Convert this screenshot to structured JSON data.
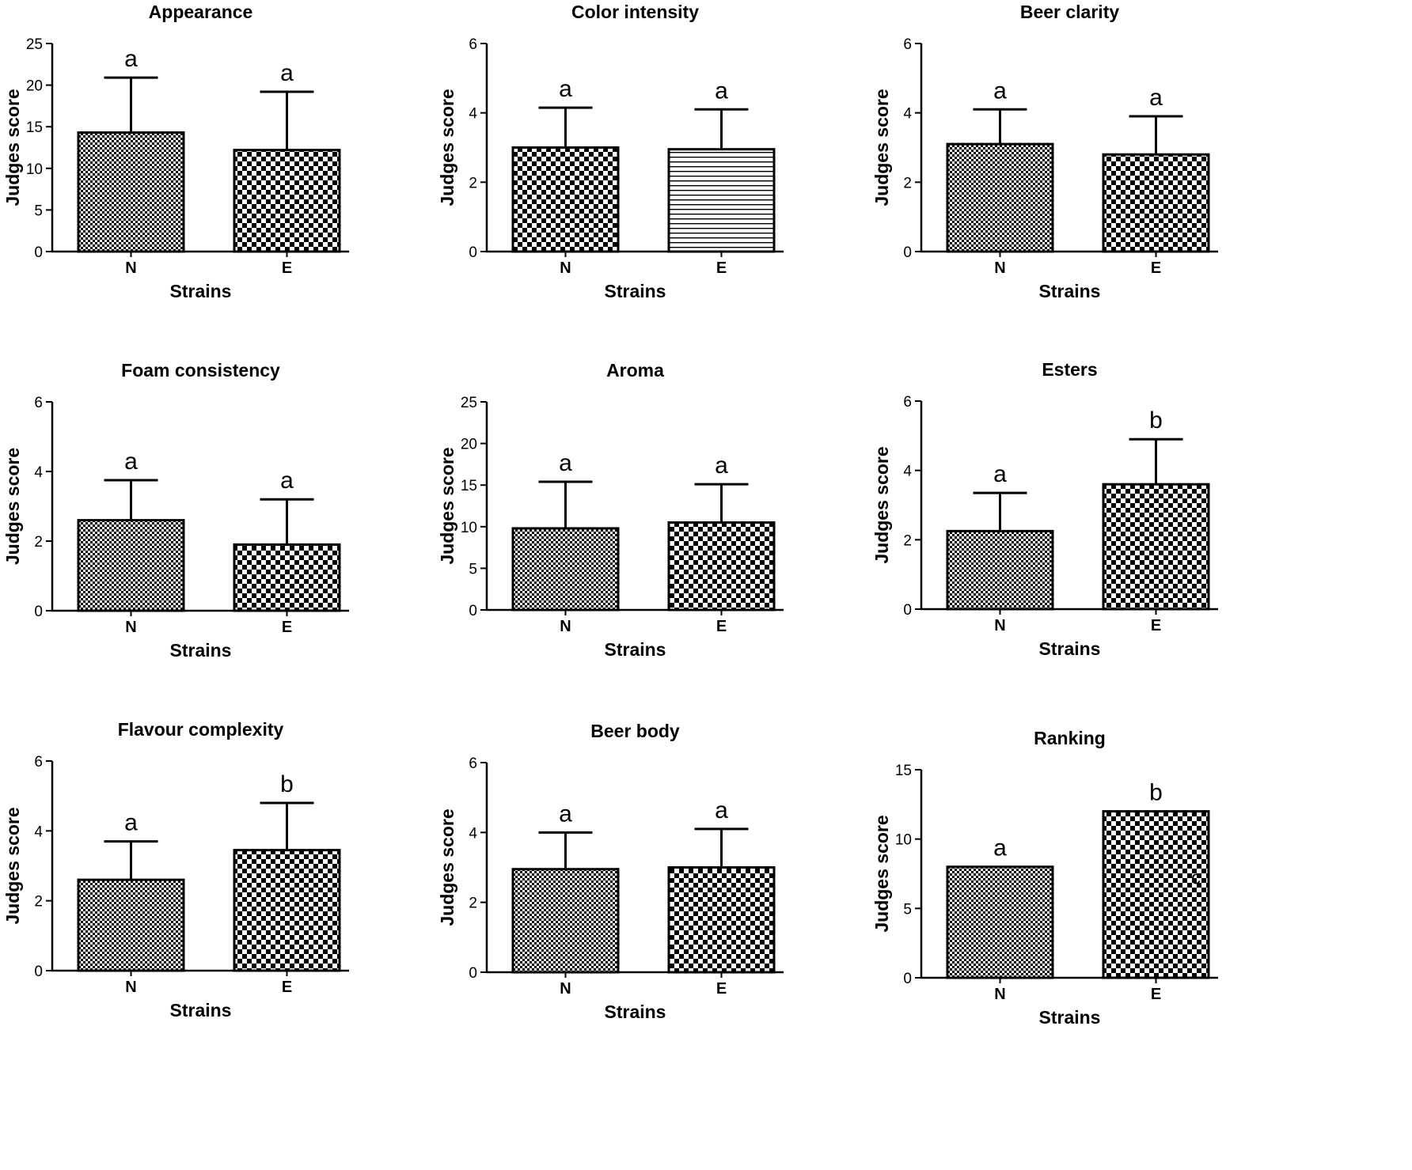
{
  "figure": {
    "xlabel": "Strains",
    "ylabel": "Judges score",
    "categories": [
      "N",
      "E"
    ]
  },
  "chart_data": [
    {
      "type": "bar",
      "title": "Appearance",
      "xlabel": "Strains",
      "ylabel": "Judges score",
      "categories": [
        "N",
        "E"
      ],
      "values": [
        14.3,
        12.2
      ],
      "error_upper": [
        20.9,
        19.2
      ],
      "letters": [
        "a",
        "a"
      ],
      "patterns": [
        "fine-check",
        "check"
      ],
      "ylim": [
        0,
        25
      ],
      "yticks": [
        0,
        5,
        10,
        15,
        20,
        25
      ]
    },
    {
      "type": "bar",
      "title": "Color intensity",
      "xlabel": "Strains",
      "ylabel": "Judges score",
      "categories": [
        "N",
        "E"
      ],
      "values": [
        3.0,
        2.95
      ],
      "error_upper": [
        4.15,
        4.1
      ],
      "letters": [
        "a",
        "a"
      ],
      "patterns": [
        "check",
        "hlines"
      ],
      "ylim": [
        0,
        6
      ],
      "yticks": [
        0,
        2,
        4,
        6
      ]
    },
    {
      "type": "bar",
      "title": "Beer clarity",
      "xlabel": "Strains",
      "ylabel": "Judges score",
      "categories": [
        "N",
        "E"
      ],
      "values": [
        3.1,
        2.8
      ],
      "error_upper": [
        4.1,
        3.9
      ],
      "letters": [
        "a",
        "a"
      ],
      "patterns": [
        "fine-check",
        "check"
      ],
      "ylim": [
        0,
        6
      ],
      "yticks": [
        0,
        2,
        4,
        6
      ]
    },
    {
      "type": "bar",
      "title": "Foam consistency",
      "xlabel": "Strains",
      "ylabel": "Judges score",
      "categories": [
        "N",
        "E"
      ],
      "values": [
        2.6,
        1.9
      ],
      "error_upper": [
        3.75,
        3.2
      ],
      "letters": [
        "a",
        "a"
      ],
      "patterns": [
        "fine-check",
        "check"
      ],
      "ylim": [
        0,
        6
      ],
      "yticks": [
        0,
        2,
        4,
        6
      ]
    },
    {
      "type": "bar",
      "title": "Aroma",
      "xlabel": "Strains",
      "ylabel": "Judges score",
      "categories": [
        "N",
        "E"
      ],
      "values": [
        9.8,
        10.5
      ],
      "error_upper": [
        15.4,
        15.1
      ],
      "letters": [
        "a",
        "a"
      ],
      "patterns": [
        "fine-check",
        "check"
      ],
      "ylim": [
        0,
        25
      ],
      "yticks": [
        0,
        5,
        10,
        15,
        20,
        25
      ]
    },
    {
      "type": "bar",
      "title": "Esters",
      "xlabel": "Strains",
      "ylabel": "Judges score",
      "categories": [
        "N",
        "E"
      ],
      "values": [
        2.25,
        3.6
      ],
      "error_upper": [
        3.35,
        4.9
      ],
      "letters": [
        "a",
        "b"
      ],
      "patterns": [
        "fine-check",
        "check"
      ],
      "ylim": [
        0,
        6
      ],
      "yticks": [
        0,
        2,
        4,
        6
      ]
    },
    {
      "type": "bar",
      "title": "Flavour complexity",
      "xlabel": "Strains",
      "ylabel": "Judges score",
      "categories": [
        "N",
        "E"
      ],
      "values": [
        2.6,
        3.45
      ],
      "error_upper": [
        3.7,
        4.8
      ],
      "letters": [
        "a",
        "b"
      ],
      "patterns": [
        "fine-check",
        "check"
      ],
      "ylim": [
        0,
        6
      ],
      "yticks": [
        0,
        2,
        4,
        6
      ]
    },
    {
      "type": "bar",
      "title": "Beer body",
      "xlabel": "Strains",
      "ylabel": "Judges score",
      "categories": [
        "N",
        "E"
      ],
      "values": [
        2.95,
        3.0
      ],
      "error_upper": [
        4.0,
        4.1
      ],
      "letters": [
        "a",
        "a"
      ],
      "patterns": [
        "fine-check",
        "check"
      ],
      "ylim": [
        0,
        6
      ],
      "yticks": [
        0,
        2,
        4,
        6
      ]
    },
    {
      "type": "bar",
      "title": "Ranking",
      "xlabel": "Strains",
      "ylabel": "Judges score",
      "categories": [
        "N",
        "E"
      ],
      "values": [
        8,
        12
      ],
      "error_upper": [
        null,
        null
      ],
      "letters": [
        "a",
        "b"
      ],
      "patterns": [
        "fine-check",
        "check"
      ],
      "ylim": [
        0,
        15
      ],
      "yticks": [
        0,
        5,
        10,
        15
      ],
      "annotation": "c"
    }
  ]
}
